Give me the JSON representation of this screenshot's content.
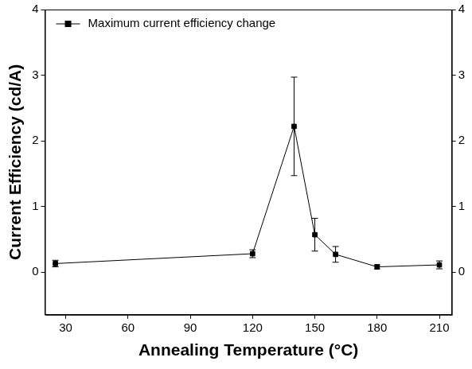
{
  "chart_data": {
    "type": "line",
    "x_label": "Annealing Temperature (°C)",
    "y_label": "Current Efficiency (cd/A)",
    "x": [
      25,
      120,
      140,
      150,
      160,
      180,
      210
    ],
    "series": [
      {
        "name": "Maximum current efficiency change",
        "color": "#000000",
        "marker": "square",
        "line_style": "solid",
        "values": [
          0.13,
          0.28,
          2.22,
          0.57,
          0.27,
          0.08,
          0.11
        ],
        "errors": [
          0.05,
          0.06,
          0.75,
          0.25,
          0.12,
          0.03,
          0.06
        ]
      }
    ],
    "xlim": [
      20,
      216
    ],
    "xticks": [
      30,
      60,
      90,
      120,
      150,
      180,
      210
    ],
    "ylim": [
      -0.65,
      4
    ],
    "yticks": [
      0,
      1,
      2,
      3,
      4
    ],
    "y2lim": [
      -0.65,
      4
    ],
    "y2ticks": [
      0,
      1,
      2,
      3,
      4
    ],
    "grid": false,
    "legend": "upper left"
  }
}
